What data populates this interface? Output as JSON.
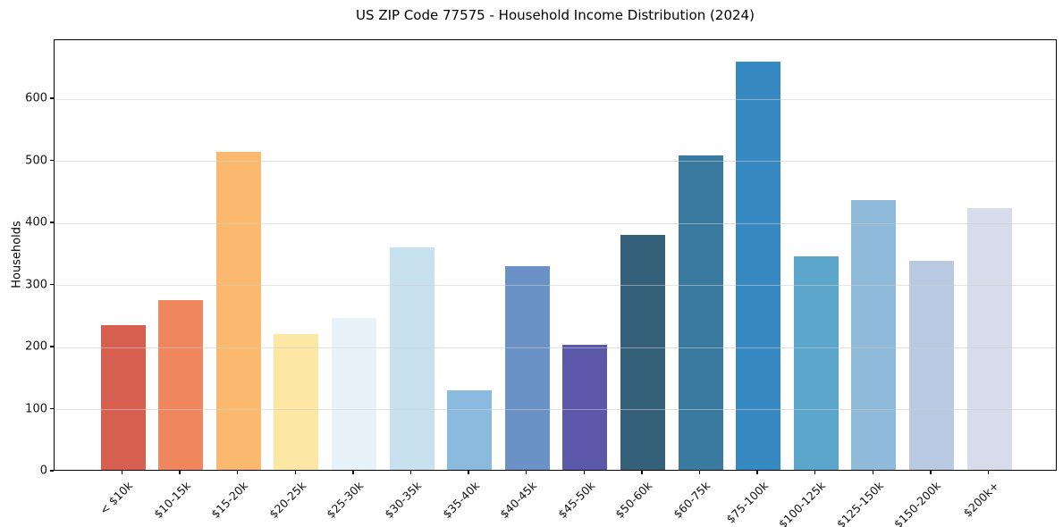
{
  "chart_data": {
    "type": "bar",
    "title": "US ZIP Code 77575 - Household Income Distribution (2024)",
    "xlabel": "",
    "ylabel": "Households",
    "categories": [
      "< $10k",
      "$10-15k",
      "$15-20k",
      "$20-25k",
      "$25-30k",
      "$30-35k",
      "$35-40k",
      "$40-45k",
      "$45-50k",
      "$50-60k",
      "$60-75k",
      "$75-100k",
      "$100-125k",
      "$125-150k",
      "$150-200k",
      "$200k+"
    ],
    "values": [
      234,
      275,
      515,
      220,
      246,
      360,
      129,
      329,
      203,
      380,
      508,
      661,
      345,
      437,
      338,
      423
    ],
    "bar_colors": [
      "#d65f4f",
      "#f0865e",
      "#fab96e",
      "#fde7a4",
      "#e6f2f7",
      "#c7e2ee",
      "#8abade",
      "#6b92c6",
      "#5b57a9",
      "#35607a",
      "#3a7aa1",
      "#3689c1",
      "#5ca5cb",
      "#8fbada",
      "#b9c9e1",
      "#d8dbe9"
    ],
    "ylim": [
      0,
      695
    ],
    "yticks": [
      0,
      100,
      200,
      300,
      400,
      500,
      600
    ],
    "grid": "horizontal-only",
    "legend": "none",
    "x_tick_rotation": 45,
    "spine_color": "#000000",
    "background_color": "#ffffff"
  }
}
